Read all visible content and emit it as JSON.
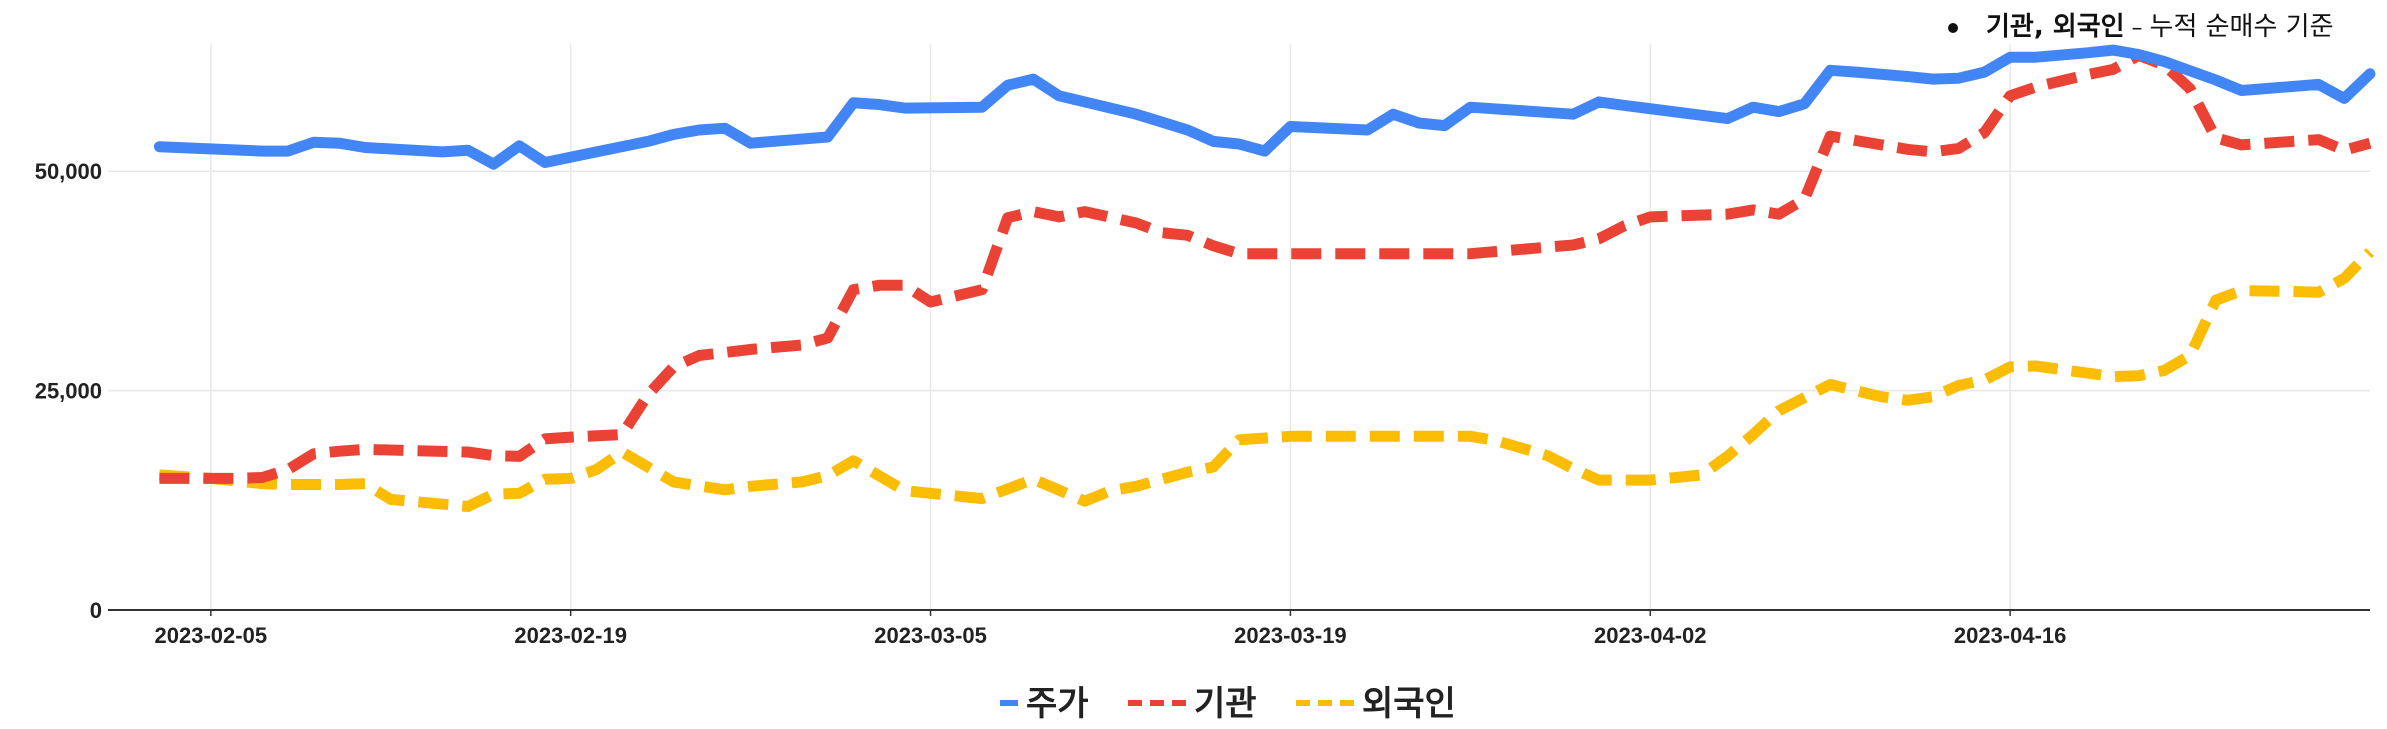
{
  "note": {
    "subject": "기관, 외국인",
    "dash": " – ",
    "detail": "누적 순매수 기준"
  },
  "colors": {
    "price": "#4285F4",
    "institution": "#EA4335",
    "foreign": "#FBBC04",
    "grid": "#E8E8E8"
  },
  "chart_data": {
    "type": "line",
    "x_start": "2023-02-01",
    "x_end": "2023-04-30",
    "x_ticks": [
      "2023-02-05",
      "2023-02-19",
      "2023-03-05",
      "2023-03-19",
      "2023-04-02",
      "2023-04-16"
    ],
    "y_ticks": [
      0,
      25000,
      50000
    ],
    "y_tick_labels": [
      "0",
      "25,000",
      "50,000"
    ],
    "ylim": [
      0,
      64500
    ],
    "grid": true,
    "legend_position": "bottom",
    "series": [
      {
        "name": "주가",
        "style": "solid",
        "points": [
          [
            "2023-02-03",
            52800
          ],
          [
            "2023-02-07",
            52300
          ],
          [
            "2023-02-08",
            52300
          ],
          [
            "2023-02-09",
            53300
          ],
          [
            "2023-02-10",
            53200
          ],
          [
            "2023-02-11",
            52700
          ],
          [
            "2023-02-14",
            52200
          ],
          [
            "2023-02-15",
            52400
          ],
          [
            "2023-02-16",
            50800
          ],
          [
            "2023-02-17",
            52900
          ],
          [
            "2023-02-18",
            51000
          ],
          [
            "2023-02-20",
            52200
          ],
          [
            "2023-02-22",
            53400
          ],
          [
            "2023-02-23",
            54200
          ],
          [
            "2023-02-24",
            54700
          ],
          [
            "2023-02-25",
            54900
          ],
          [
            "2023-02-26",
            53200
          ],
          [
            "2023-03-01",
            53900
          ],
          [
            "2023-03-02",
            57800
          ],
          [
            "2023-03-03",
            57600
          ],
          [
            "2023-03-04",
            57200
          ],
          [
            "2023-03-07",
            57300
          ],
          [
            "2023-03-08",
            59800
          ],
          [
            "2023-03-09",
            60500
          ],
          [
            "2023-03-10",
            58600
          ],
          [
            "2023-03-13",
            56500
          ],
          [
            "2023-03-15",
            54700
          ],
          [
            "2023-03-16",
            53400
          ],
          [
            "2023-03-17",
            53100
          ],
          [
            "2023-03-18",
            52300
          ],
          [
            "2023-03-19",
            55100
          ],
          [
            "2023-03-22",
            54700
          ],
          [
            "2023-03-23",
            56500
          ],
          [
            "2023-03-24",
            55500
          ],
          [
            "2023-03-25",
            55200
          ],
          [
            "2023-03-26",
            57300
          ],
          [
            "2023-03-30",
            56500
          ],
          [
            "2023-03-31",
            57900
          ],
          [
            "2023-04-01",
            57500
          ],
          [
            "2023-04-05",
            56000
          ],
          [
            "2023-04-06",
            57300
          ],
          [
            "2023-04-07",
            56800
          ],
          [
            "2023-04-08",
            57700
          ],
          [
            "2023-04-09",
            61500
          ],
          [
            "2023-04-10",
            61300
          ],
          [
            "2023-04-12",
            60800
          ],
          [
            "2023-04-13",
            60500
          ],
          [
            "2023-04-14",
            60600
          ],
          [
            "2023-04-15",
            61300
          ],
          [
            "2023-04-16",
            63000
          ],
          [
            "2023-04-17",
            63000
          ],
          [
            "2023-04-19",
            63500
          ],
          [
            "2023-04-20",
            63800
          ],
          [
            "2023-04-21",
            63300
          ],
          [
            "2023-04-22",
            62500
          ],
          [
            "2023-04-24",
            60400
          ],
          [
            "2023-04-25",
            59200
          ],
          [
            "2023-04-28",
            59900
          ],
          [
            "2023-04-29",
            58300
          ],
          [
            "2023-04-30",
            61100
          ]
        ]
      },
      {
        "name": "기관",
        "style": "dashed",
        "points": [
          [
            "2023-02-03",
            15000
          ],
          [
            "2023-02-04",
            15000
          ],
          [
            "2023-02-06",
            15000
          ],
          [
            "2023-02-07",
            15100
          ],
          [
            "2023-02-08",
            16000
          ],
          [
            "2023-02-09",
            17800
          ],
          [
            "2023-02-10",
            18100
          ],
          [
            "2023-02-11",
            18300
          ],
          [
            "2023-02-15",
            18000
          ],
          [
            "2023-02-16",
            17600
          ],
          [
            "2023-02-17",
            17500
          ],
          [
            "2023-02-18",
            19500
          ],
          [
            "2023-02-19",
            19700
          ],
          [
            "2023-02-21",
            20000
          ],
          [
            "2023-02-22",
            24500
          ],
          [
            "2023-02-23",
            27700
          ],
          [
            "2023-02-24",
            29000
          ],
          [
            "2023-02-26",
            29700
          ],
          [
            "2023-02-28",
            30200
          ],
          [
            "2023-03-01",
            31000
          ],
          [
            "2023-03-02",
            36500
          ],
          [
            "2023-03-03",
            37000
          ],
          [
            "2023-03-04",
            37000
          ],
          [
            "2023-03-05",
            35100
          ],
          [
            "2023-03-07",
            36500
          ],
          [
            "2023-03-08",
            44700
          ],
          [
            "2023-03-09",
            45400
          ],
          [
            "2023-03-10",
            44800
          ],
          [
            "2023-03-11",
            45400
          ],
          [
            "2023-03-13",
            44100
          ],
          [
            "2023-03-14",
            43000
          ],
          [
            "2023-03-15",
            42700
          ],
          [
            "2023-03-16",
            41500
          ],
          [
            "2023-03-17",
            40600
          ],
          [
            "2023-03-19",
            40600
          ],
          [
            "2023-03-24",
            40600
          ],
          [
            "2023-03-26",
            40600
          ],
          [
            "2023-03-28",
            41100
          ],
          [
            "2023-03-30",
            41600
          ],
          [
            "2023-03-31",
            42300
          ],
          [
            "2023-04-01",
            43800
          ],
          [
            "2023-04-02",
            44800
          ],
          [
            "2023-04-05",
            45100
          ],
          [
            "2023-04-06",
            45600
          ],
          [
            "2023-04-07",
            45100
          ],
          [
            "2023-04-08",
            46800
          ],
          [
            "2023-04-09",
            54000
          ],
          [
            "2023-04-10",
            53500
          ],
          [
            "2023-04-12",
            52500
          ],
          [
            "2023-04-13",
            52200
          ],
          [
            "2023-04-14",
            52600
          ],
          [
            "2023-04-15",
            54400
          ],
          [
            "2023-04-16",
            58600
          ],
          [
            "2023-04-17",
            59600
          ],
          [
            "2023-04-19",
            61000
          ],
          [
            "2023-04-20",
            61600
          ],
          [
            "2023-04-21",
            63200
          ],
          [
            "2023-04-22",
            62100
          ],
          [
            "2023-04-23",
            59400
          ],
          [
            "2023-04-24",
            53800
          ],
          [
            "2023-04-25",
            53000
          ],
          [
            "2023-04-28",
            53600
          ],
          [
            "2023-04-29",
            52400
          ],
          [
            "2023-04-30",
            53200
          ]
        ]
      },
      {
        "name": "외국인",
        "style": "dashed",
        "points": [
          [
            "2023-02-03",
            15400
          ],
          [
            "2023-02-05",
            15000
          ],
          [
            "2023-02-07",
            14400
          ],
          [
            "2023-02-08",
            14300
          ],
          [
            "2023-02-10",
            14300
          ],
          [
            "2023-02-11",
            14400
          ],
          [
            "2023-02-12",
            12600
          ],
          [
            "2023-02-15",
            11800
          ],
          [
            "2023-02-16",
            13200
          ],
          [
            "2023-02-17",
            13300
          ],
          [
            "2023-02-18",
            14900
          ],
          [
            "2023-02-19",
            15000
          ],
          [
            "2023-02-20",
            16000
          ],
          [
            "2023-02-21",
            18000
          ],
          [
            "2023-02-23",
            14600
          ],
          [
            "2023-02-25",
            13700
          ],
          [
            "2023-02-26",
            14100
          ],
          [
            "2023-02-28",
            14600
          ],
          [
            "2023-03-01",
            15300
          ],
          [
            "2023-03-02",
            17000
          ],
          [
            "2023-03-04",
            13600
          ],
          [
            "2023-03-07",
            12700
          ],
          [
            "2023-03-09",
            14900
          ],
          [
            "2023-03-11",
            12400
          ],
          [
            "2023-03-12",
            13600
          ],
          [
            "2023-03-13",
            14100
          ],
          [
            "2023-03-15",
            15700
          ],
          [
            "2023-03-16",
            16300
          ],
          [
            "2023-03-17",
            19400
          ],
          [
            "2023-03-19",
            19800
          ],
          [
            "2023-03-26",
            19800
          ],
          [
            "2023-03-27",
            19300
          ],
          [
            "2023-03-29",
            17600
          ],
          [
            "2023-03-30",
            16100
          ],
          [
            "2023-03-31",
            14800
          ],
          [
            "2023-04-02",
            14800
          ],
          [
            "2023-04-04",
            15400
          ],
          [
            "2023-04-05",
            17500
          ],
          [
            "2023-04-06",
            20000
          ],
          [
            "2023-04-07",
            22700
          ],
          [
            "2023-04-09",
            25700
          ],
          [
            "2023-04-11",
            24300
          ],
          [
            "2023-04-12",
            23900
          ],
          [
            "2023-04-13",
            24300
          ],
          [
            "2023-04-14",
            25600
          ],
          [
            "2023-04-15",
            26200
          ],
          [
            "2023-04-16",
            27700
          ],
          [
            "2023-04-17",
            27800
          ],
          [
            "2023-04-19",
            27000
          ],
          [
            "2023-04-20",
            26600
          ],
          [
            "2023-04-21",
            26700
          ],
          [
            "2023-04-22",
            27300
          ],
          [
            "2023-04-23",
            29000
          ],
          [
            "2023-04-24",
            35300
          ],
          [
            "2023-04-25",
            36400
          ],
          [
            "2023-04-27",
            36300
          ],
          [
            "2023-04-28",
            36200
          ],
          [
            "2023-04-29",
            37800
          ],
          [
            "2023-04-30",
            40800
          ]
        ]
      }
    ]
  }
}
